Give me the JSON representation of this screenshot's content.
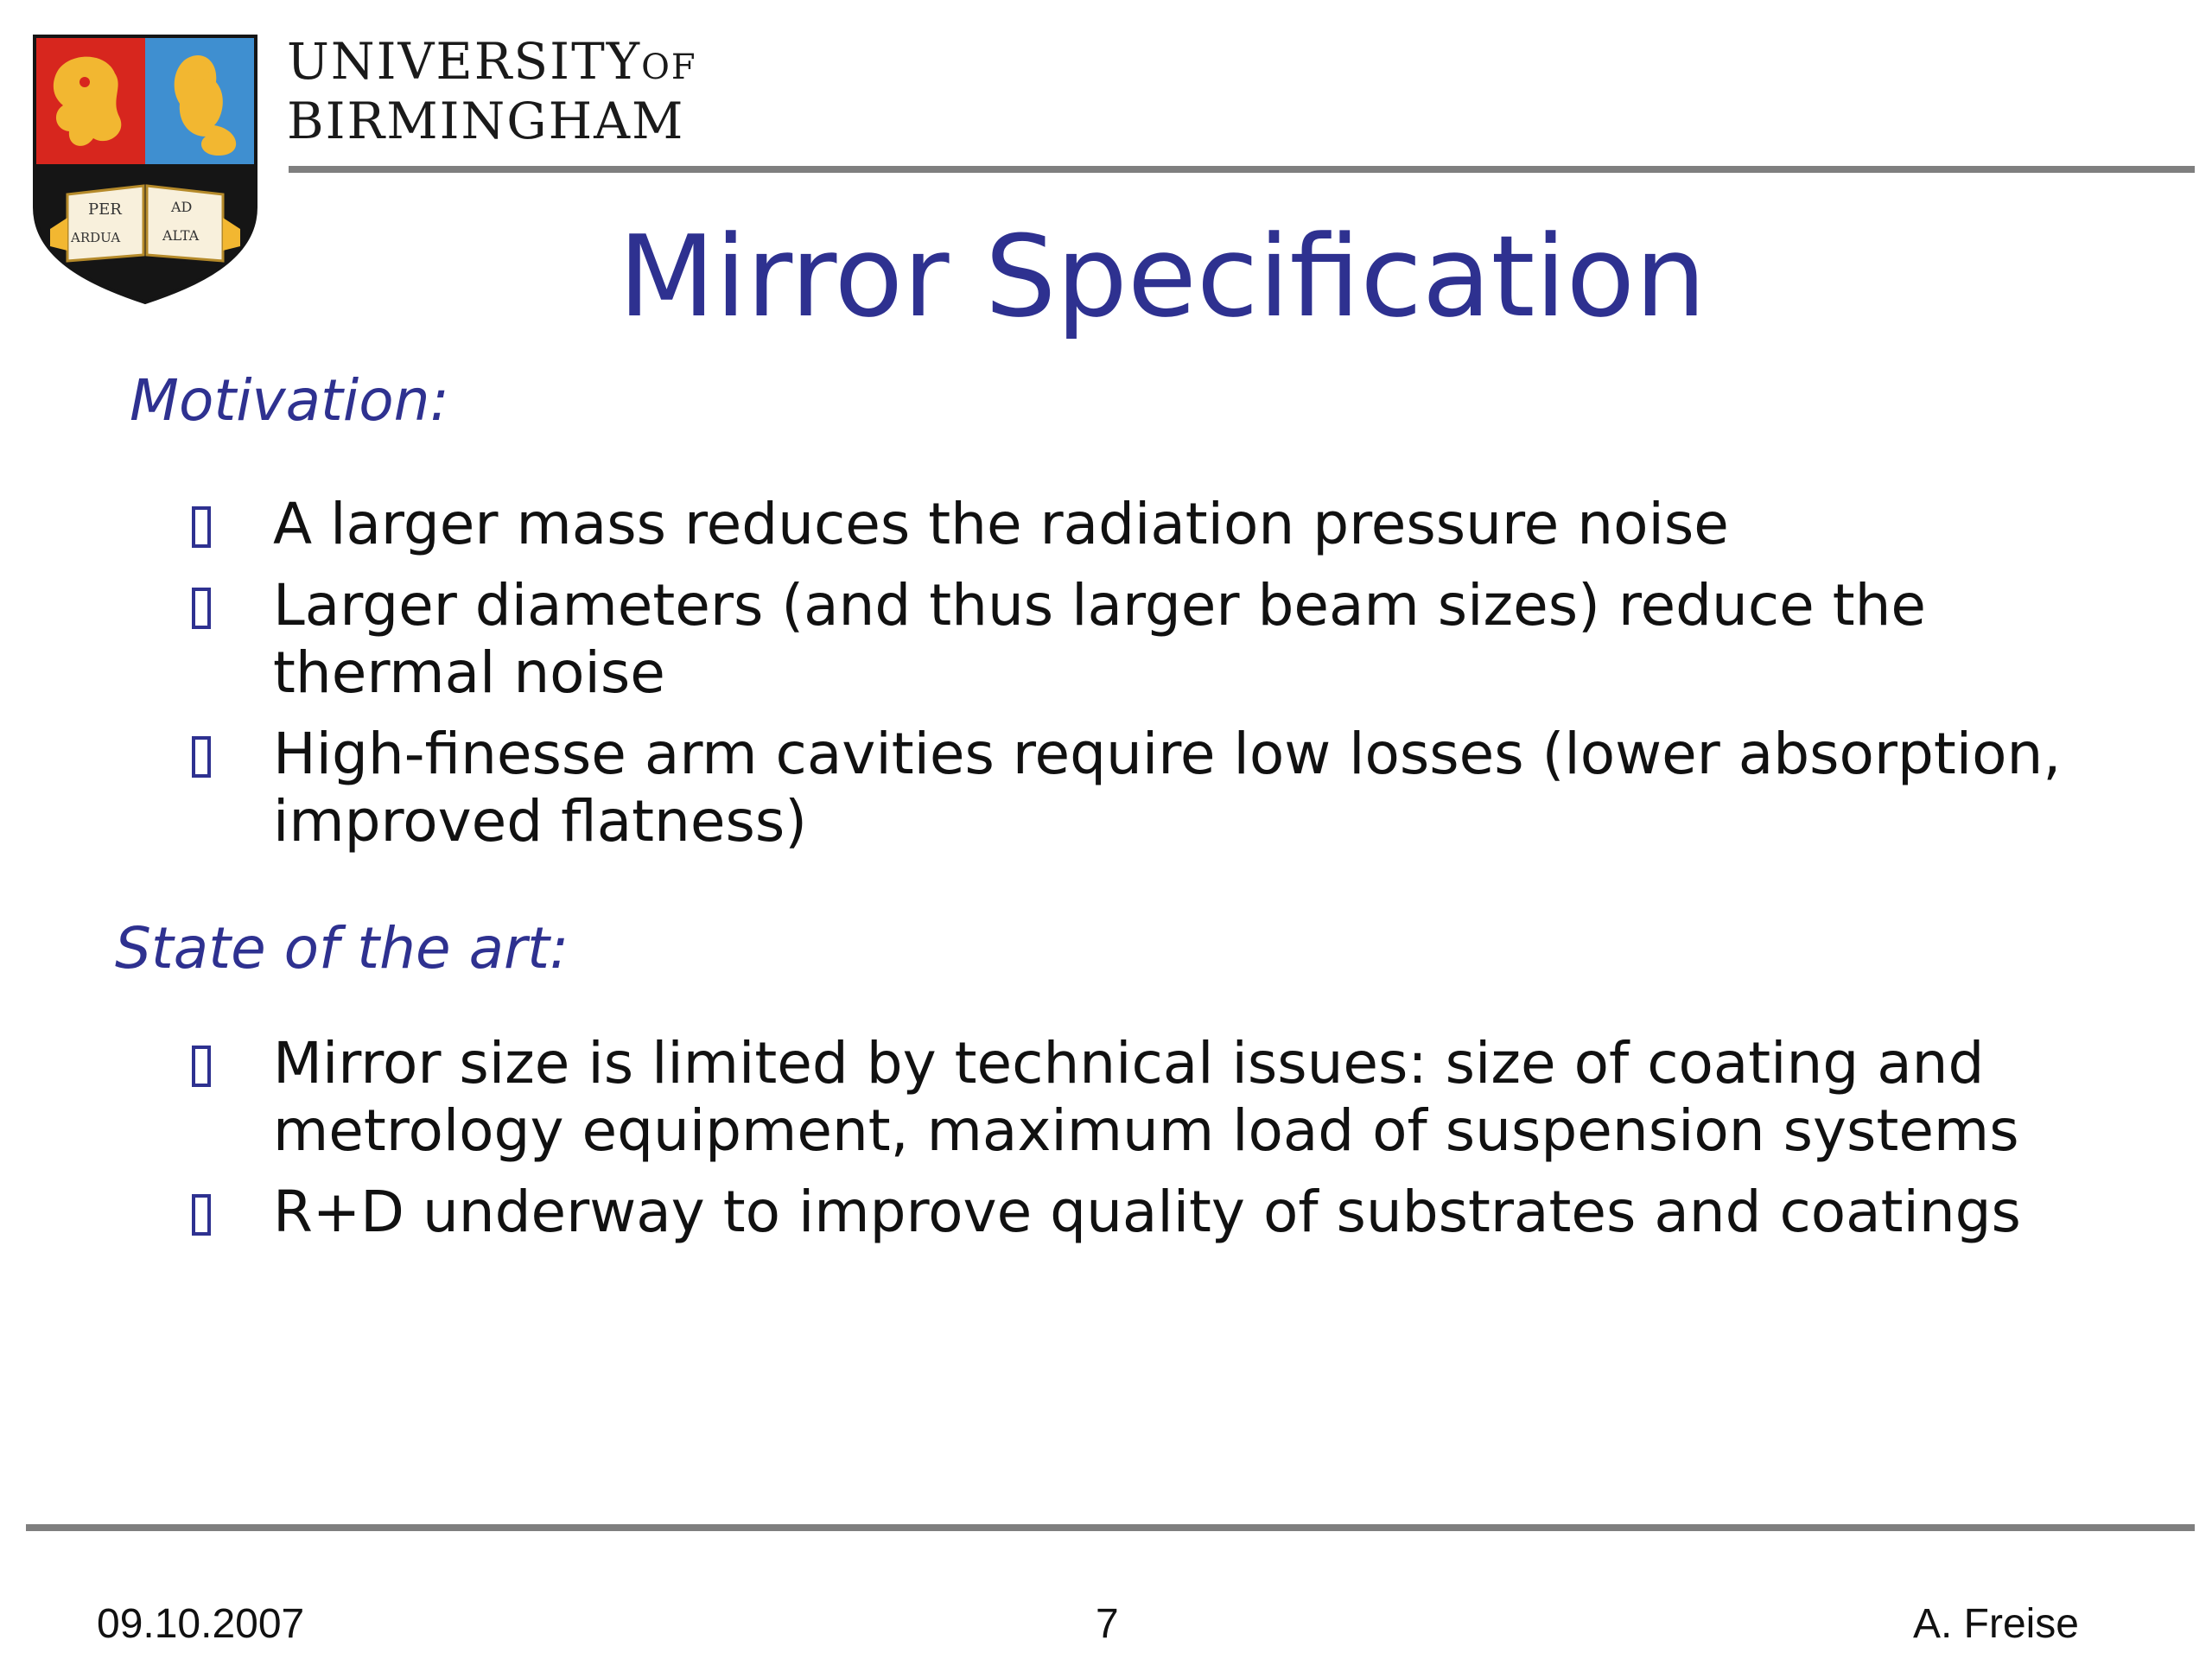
{
  "header": {
    "university_line1": "UNIVERSITY",
    "university_of": "OF",
    "university_line2": "BIRMINGHAM",
    "crest_motto": [
      "PER",
      "AD",
      "ARDUA",
      "ALTA"
    ]
  },
  "slide": {
    "title": "Mirror Specification",
    "sections": [
      {
        "heading": "Motivation:",
        "bullets": [
          "A larger mass reduces the radiation pressure noise",
          "Larger diameters (and thus larger beam sizes) reduce the thermal noise",
          "High-finesse arm cavities require low losses (lower absorption, improved flatness)"
        ]
      },
      {
        "heading": "State of the art:",
        "bullets": [
          "Mirror size is limited by technical issues: size of coating and metrology equipment, maximum load of suspension systems",
          "R+D underway to improve quality of substrates and coatings"
        ]
      }
    ]
  },
  "footer": {
    "date": "09.10.2007",
    "page": "7",
    "author": "A. Freise"
  },
  "colors": {
    "accent": "#2e3190",
    "rule": "#7f7f7f",
    "crest_red": "#d7261e",
    "crest_blue": "#3f8fd0",
    "crest_gold": "#f2b731"
  }
}
